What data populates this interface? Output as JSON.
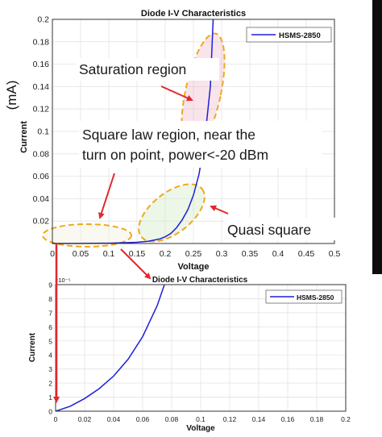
{
  "chart_data": [
    {
      "type": "line",
      "title": "Diode I-V Characteristics",
      "xlabel": "Voltage",
      "ylabel": "Current",
      "ylabel_side": "(mA)",
      "xlim": [
        0,
        0.5
      ],
      "ylim": [
        0,
        0.2
      ],
      "grid": true,
      "legend_position": "top-right",
      "xticks": [
        "0",
        "0.05",
        "0.1",
        "0.15",
        "0.2",
        "0.25",
        "0.3",
        "0.35",
        "0.4",
        "0.45",
        "0.5"
      ],
      "yticks": [
        "0.02",
        "0.04",
        "0.06",
        "0.08",
        "0.1",
        "0.12",
        "0.14",
        "0.16",
        "0.18",
        "0.2"
      ],
      "series": [
        {
          "name": "HSMS-2850",
          "color": "#1f1fd6",
          "x": [
            0.0,
            0.05,
            0.1,
            0.15,
            0.17,
            0.19,
            0.2,
            0.21,
            0.22,
            0.23,
            0.24,
            0.25,
            0.26,
            0.27,
            0.28,
            0.285
          ],
          "y": [
            0.0,
            0.0001,
            0.0003,
            0.0011,
            0.002,
            0.004,
            0.006,
            0.009,
            0.014,
            0.021,
            0.03,
            0.043,
            0.062,
            0.092,
            0.14,
            0.2
          ]
        }
      ],
      "annotations": [
        "Saturation region",
        "Square law region, near the",
        "turn on point, power<-20 dBm",
        "Quasi square"
      ]
    },
    {
      "type": "line",
      "title": "Diode I-V Characteristics",
      "xlabel": "Voltage",
      "ylabel": "Current",
      "xlim": [
        0,
        0.2
      ],
      "ylim": [
        0,
        9e-05
      ],
      "y_exponent": "×10⁻⁵",
      "grid": true,
      "legend_position": "top-right",
      "xticks": [
        "0",
        "0.02",
        "0.04",
        "0.06",
        "0.08",
        "0.1",
        "0.12",
        "0.14",
        "0.16",
        "0.18",
        "0.2"
      ],
      "yticks": [
        "0",
        "1",
        "2",
        "3",
        "4",
        "5",
        "6",
        "7",
        "8",
        "9"
      ],
      "series": [
        {
          "name": "HSMS-2850",
          "color": "#1f1fd6",
          "x": [
            0.0,
            0.01,
            0.02,
            0.03,
            0.04,
            0.05,
            0.06,
            0.07,
            0.075
          ],
          "y": [
            0.0,
            3.5e-06,
            9e-06,
            1.6e-05,
            2.5e-05,
            3.7e-05,
            5.3e-05,
            7.5e-05,
            9e-05
          ]
        }
      ]
    }
  ]
}
